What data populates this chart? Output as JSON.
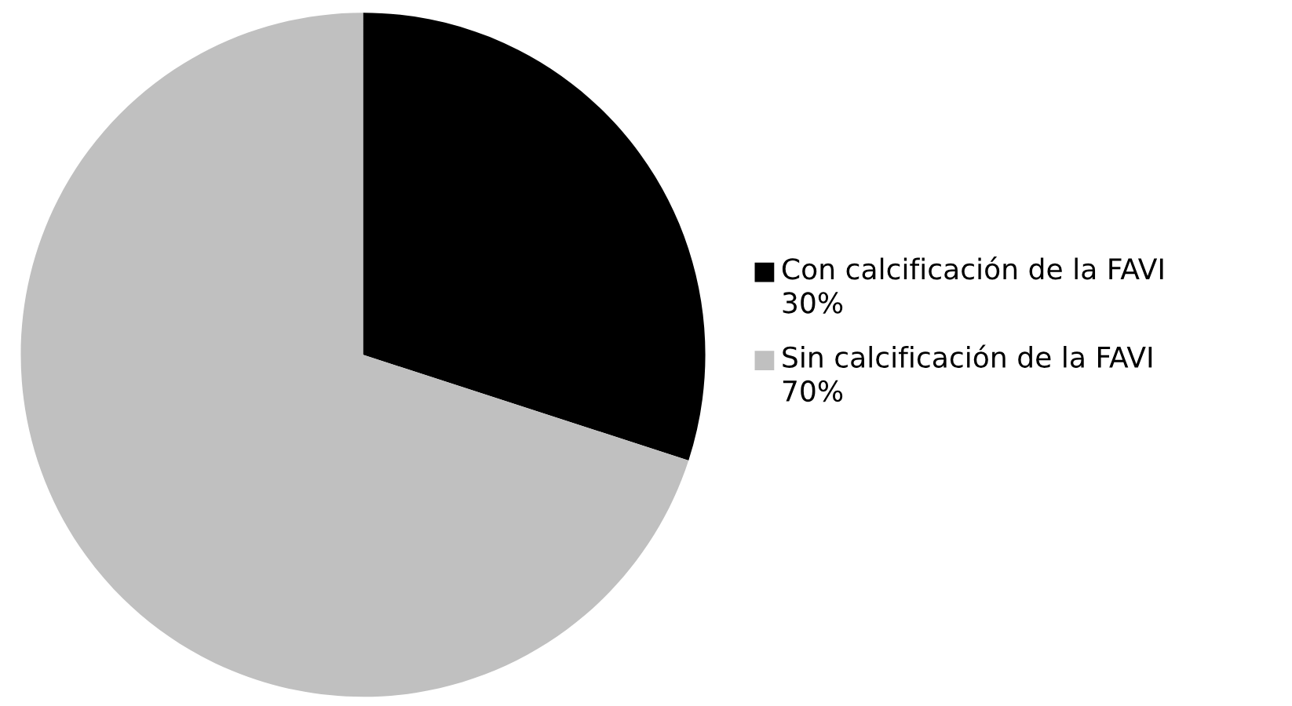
{
  "chart_data": {
    "type": "pie",
    "categories": [
      "Con calcificación de la FAVI",
      "Sin calcificación de la FAVI"
    ],
    "values": [
      30,
      70
    ],
    "value_labels": [
      "30%",
      "70%"
    ],
    "colors": [
      "#000000",
      "#c0c0c0"
    ],
    "legend": "right"
  }
}
